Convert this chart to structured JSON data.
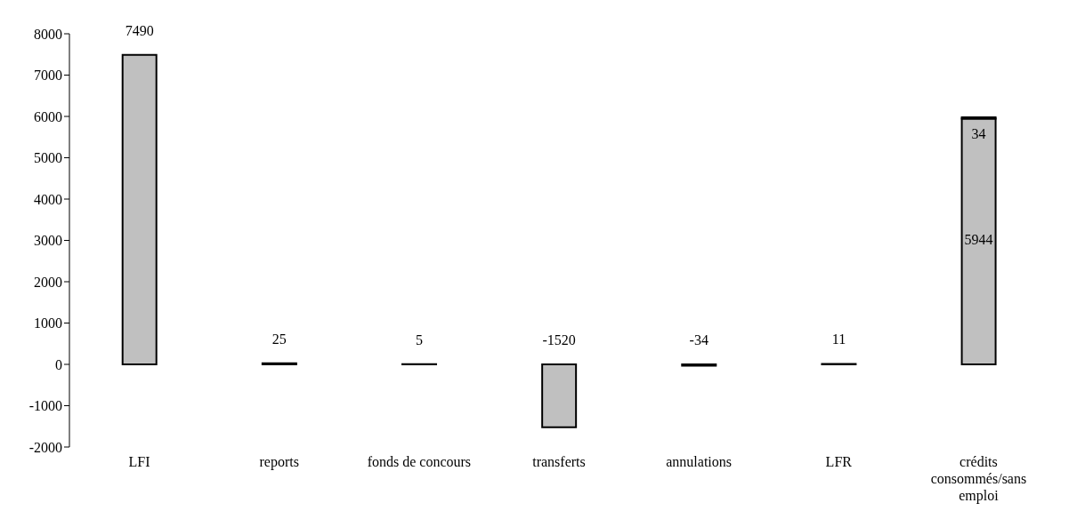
{
  "chart_data": {
    "type": "bar",
    "stacked": true,
    "categories": [
      "LFI",
      "reports",
      "fonds de concours",
      "transferts",
      "annulations",
      "LFR",
      "crédits consommés/sans emploi"
    ],
    "series": [
      {
        "color": "#c0c0c0",
        "values": [
          7490,
          25,
          5,
          -1520,
          -34,
          11,
          5944
        ]
      },
      {
        "color": "#404040",
        "values": [
          null,
          null,
          null,
          null,
          null,
          null,
          34
        ]
      }
    ],
    "ylim": [
      -2000,
      8000
    ],
    "yticks": [
      -2000,
      -1000,
      0,
      1000,
      2000,
      3000,
      4000,
      5000,
      6000,
      7000,
      8000
    ],
    "data_labels": true
  }
}
